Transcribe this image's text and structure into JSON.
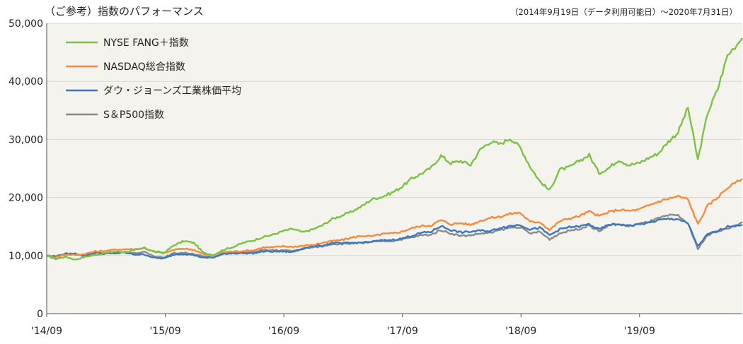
{
  "chart_data": {
    "type": "line",
    "title": "（ご参考）指数のパフォーマンス",
    "subtitle": "（2014年9月19日（データ利用可能日）～2020年7月31日）",
    "xlabel": "",
    "ylabel": "",
    "x_ticks": [
      "'14/09",
      "'15/09",
      "'16/09",
      "'17/09",
      "'18/09",
      "'19/09"
    ],
    "y_ticks": [
      "0",
      "10,000",
      "20,000",
      "30,000",
      "40,000",
      "50,000"
    ],
    "ylim": [
      0,
      50000
    ],
    "xlim": [
      "2014-09",
      "2020-07"
    ],
    "grid": "horizontal",
    "legend_position": "top-left",
    "series": [
      {
        "name": "NYSE FANG＋指数",
        "color": "#7cc242",
        "x": [
          "2014-09",
          "2014-10",
          "2014-11",
          "2014-12",
          "2015-01",
          "2015-02",
          "2015-03",
          "2015-04",
          "2015-05",
          "2015-06",
          "2015-07",
          "2015-08",
          "2015-09",
          "2015-10",
          "2015-11",
          "2015-12",
          "2016-01",
          "2016-02",
          "2016-03",
          "2016-04",
          "2016-05",
          "2016-06",
          "2016-07",
          "2016-08",
          "2016-09",
          "2016-10",
          "2016-11",
          "2016-12",
          "2017-01",
          "2017-02",
          "2017-03",
          "2017-04",
          "2017-05",
          "2017-06",
          "2017-07",
          "2017-08",
          "2017-09",
          "2017-10",
          "2017-11",
          "2017-12",
          "2018-01",
          "2018-02",
          "2018-03",
          "2018-04",
          "2018-05",
          "2018-06",
          "2018-07",
          "2018-08",
          "2018-09",
          "2018-10",
          "2018-11",
          "2018-12",
          "2019-01",
          "2019-02",
          "2019-03",
          "2019-04",
          "2019-05",
          "2019-06",
          "2019-07",
          "2019-08",
          "2019-09",
          "2019-10",
          "2019-11",
          "2019-12",
          "2020-01",
          "2020-02",
          "2020-03",
          "2020-04",
          "2020-05",
          "2020-06",
          "2020-07"
        ],
        "values": [
          10000,
          9400,
          9800,
          9300,
          9800,
          10100,
          10400,
          10700,
          10600,
          10900,
          11300,
          10700,
          10500,
          11800,
          12500,
          12200,
          10400,
          10100,
          11000,
          11500,
          12200,
          12600,
          13200,
          13600,
          14200,
          14600,
          14000,
          14500,
          15200,
          16300,
          16900,
          17600,
          18500,
          19700,
          20100,
          20800,
          21800,
          23200,
          24100,
          25100,
          27200,
          25900,
          26300,
          25600,
          28300,
          29600,
          29200,
          30200,
          28700,
          25400,
          22800,
          21200,
          24800,
          25200,
          26300,
          27300,
          24200,
          25100,
          26500,
          25600,
          25900,
          26800,
          27600,
          29600,
          31200,
          35500,
          26500,
          34600,
          38600,
          44500,
          47500
        ]
      },
      {
        "name": "NASDAQ総合指数",
        "color": "#f58b3c",
        "x": [
          "2014-09",
          "2014-10",
          "2014-11",
          "2014-12",
          "2015-01",
          "2015-02",
          "2015-03",
          "2015-04",
          "2015-05",
          "2015-06",
          "2015-07",
          "2015-08",
          "2015-09",
          "2015-10",
          "2015-11",
          "2015-12",
          "2016-01",
          "2016-02",
          "2016-03",
          "2016-04",
          "2016-05",
          "2016-06",
          "2016-07",
          "2016-08",
          "2016-09",
          "2016-10",
          "2016-11",
          "2016-12",
          "2017-01",
          "2017-02",
          "2017-03",
          "2017-04",
          "2017-05",
          "2017-06",
          "2017-07",
          "2017-08",
          "2017-09",
          "2017-10",
          "2017-11",
          "2017-12",
          "2018-01",
          "2018-02",
          "2018-03",
          "2018-04",
          "2018-05",
          "2018-06",
          "2018-07",
          "2018-08",
          "2018-09",
          "2018-10",
          "2018-11",
          "2018-12",
          "2019-01",
          "2019-02",
          "2019-03",
          "2019-04",
          "2019-05",
          "2019-06",
          "2019-07",
          "2019-08",
          "2019-09",
          "2019-10",
          "2019-11",
          "2019-12",
          "2020-01",
          "2020-02",
          "2020-03",
          "2020-04",
          "2020-05",
          "2020-06",
          "2020-07"
        ],
        "values": [
          10000,
          9700,
          10200,
          10100,
          10300,
          10700,
          10800,
          11000,
          11100,
          11100,
          11300,
          10600,
          10400,
          11000,
          11200,
          11000,
          10200,
          10100,
          10600,
          10700,
          10800,
          10900,
          11400,
          11400,
          11600,
          11500,
          11700,
          11800,
          12200,
          12500,
          12700,
          13100,
          13400,
          13300,
          13700,
          13800,
          14100,
          14700,
          15100,
          15200,
          16100,
          15400,
          15600,
          15300,
          16000,
          16500,
          16700,
          17200,
          17400,
          15800,
          15800,
          14400,
          15900,
          16400,
          16800,
          17600,
          16800,
          17500,
          17900,
          17700,
          17900,
          18600,
          19300,
          19800,
          20200,
          19700,
          15400,
          18600,
          20000,
          21700,
          23200
        ]
      },
      {
        "name": "ダウ・ジョーンズ工業株価平均",
        "color": "#3a78c2",
        "x": [
          "2014-09",
          "2014-10",
          "2014-11",
          "2014-12",
          "2015-01",
          "2015-02",
          "2015-03",
          "2015-04",
          "2015-05",
          "2015-06",
          "2015-07",
          "2015-08",
          "2015-09",
          "2015-10",
          "2015-11",
          "2015-12",
          "2016-01",
          "2016-02",
          "2016-03",
          "2016-04",
          "2016-05",
          "2016-06",
          "2016-07",
          "2016-08",
          "2016-09",
          "2016-10",
          "2016-11",
          "2016-12",
          "2017-01",
          "2017-02",
          "2017-03",
          "2017-04",
          "2017-05",
          "2017-06",
          "2017-07",
          "2017-08",
          "2017-09",
          "2017-10",
          "2017-11",
          "2017-12",
          "2018-01",
          "2018-02",
          "2018-03",
          "2018-04",
          "2018-05",
          "2018-06",
          "2018-07",
          "2018-08",
          "2018-09",
          "2018-10",
          "2018-11",
          "2018-12",
          "2019-01",
          "2019-02",
          "2019-03",
          "2019-04",
          "2019-05",
          "2019-06",
          "2019-07",
          "2019-08",
          "2019-09",
          "2019-10",
          "2019-11",
          "2019-12",
          "2020-01",
          "2020-02",
          "2020-03",
          "2020-04",
          "2020-05",
          "2020-06",
          "2020-07"
        ],
        "values": [
          10000,
          9800,
          10300,
          10300,
          10000,
          10500,
          10300,
          10400,
          10500,
          10200,
          10200,
          9600,
          9500,
          10200,
          10300,
          10100,
          9600,
          9700,
          10300,
          10400,
          10400,
          10400,
          10700,
          10700,
          10700,
          10600,
          11200,
          11600,
          11700,
          12200,
          12100,
          12200,
          12200,
          12400,
          12600,
          12700,
          12900,
          13400,
          13900,
          14100,
          15100,
          14400,
          14000,
          14100,
          14300,
          14200,
          14800,
          15100,
          15300,
          14500,
          14800,
          13500,
          14500,
          14900,
          15000,
          15400,
          14500,
          15300,
          15400,
          15100,
          15400,
          15600,
          16100,
          16300,
          16300,
          15500,
          11600,
          13700,
          14200,
          15000,
          15300
        ]
      },
      {
        "name": "S＆P500指数",
        "color": "#8a8a8a",
        "x": [
          "2014-09",
          "2014-10",
          "2014-11",
          "2014-12",
          "2015-01",
          "2015-02",
          "2015-03",
          "2015-04",
          "2015-05",
          "2015-06",
          "2015-07",
          "2015-08",
          "2015-09",
          "2015-10",
          "2015-11",
          "2015-12",
          "2016-01",
          "2016-02",
          "2016-03",
          "2016-04",
          "2016-05",
          "2016-06",
          "2016-07",
          "2016-08",
          "2016-09",
          "2016-10",
          "2016-11",
          "2016-12",
          "2017-01",
          "2017-02",
          "2017-03",
          "2017-04",
          "2017-05",
          "2017-06",
          "2017-07",
          "2017-08",
          "2017-09",
          "2017-10",
          "2017-11",
          "2017-12",
          "2018-01",
          "2018-02",
          "2018-03",
          "2018-04",
          "2018-05",
          "2018-06",
          "2018-07",
          "2018-08",
          "2018-09",
          "2018-10",
          "2018-11",
          "2018-12",
          "2019-01",
          "2019-02",
          "2019-03",
          "2019-04",
          "2019-05",
          "2019-06",
          "2019-07",
          "2019-08",
          "2019-09",
          "2019-10",
          "2019-11",
          "2019-12",
          "2020-01",
          "2020-02",
          "2020-03",
          "2020-04",
          "2020-05",
          "2020-06",
          "2020-07"
        ],
        "values": [
          10000,
          9900,
          10300,
          10300,
          10000,
          10500,
          10400,
          10500,
          10600,
          10400,
          10600,
          9900,
          9700,
          10400,
          10500,
          10300,
          9800,
          9700,
          10400,
          10400,
          10600,
          10600,
          10900,
          10900,
          10900,
          10800,
          11200,
          11400,
          11600,
          12000,
          12000,
          12100,
          12200,
          12300,
          12500,
          12500,
          12800,
          13100,
          13500,
          13600,
          14400,
          13800,
          13400,
          13500,
          13800,
          13900,
          14400,
          14800,
          14900,
          13800,
          14100,
          12800,
          13800,
          14300,
          14600,
          15200,
          14200,
          15200,
          15400,
          15100,
          15400,
          15800,
          16400,
          16900,
          16900,
          15500,
          11200,
          13500,
          14200,
          14600,
          15800
        ]
      }
    ]
  }
}
